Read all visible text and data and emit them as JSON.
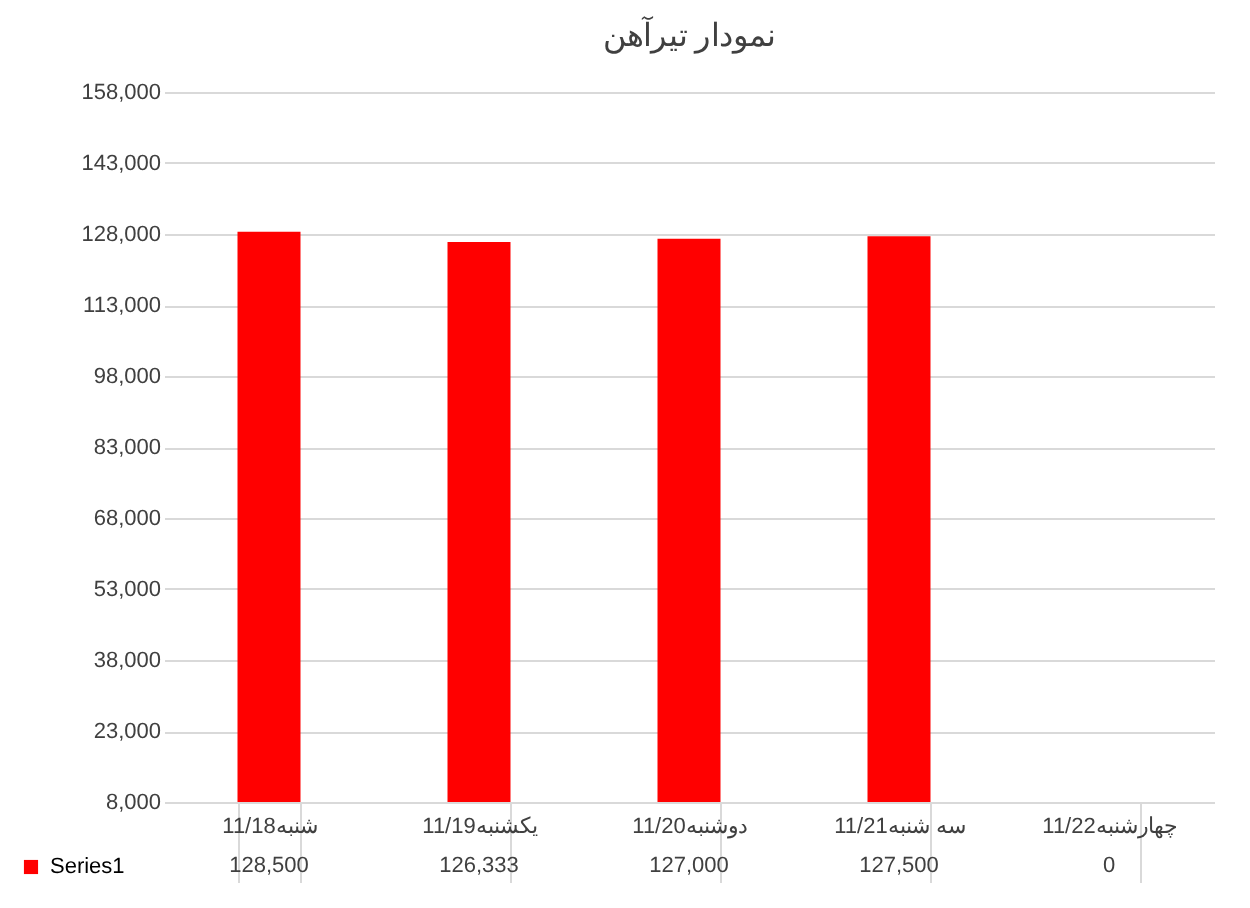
{
  "chart_data": {
    "type": "bar",
    "title": "نمودار تیرآهن",
    "categories": [
      "شنبه11/18",
      "یکشنبه11/19",
      "دوشنبه11/20",
      "سه شنبه11/21",
      "چهارشنبه11/22"
    ],
    "series": [
      {
        "name": "Series1",
        "color": "#ff0000",
        "values": [
          128500,
          126333,
          127000,
          127500,
          null
        ],
        "value_labels": [
          "128,500",
          "126,333",
          "127,000",
          "127,500",
          "0"
        ]
      }
    ],
    "ylim": [
      8000,
      158000
    ],
    "yticks": [
      {
        "value": 8000,
        "label": "8,000"
      },
      {
        "value": 23000,
        "label": "23,000"
      },
      {
        "value": 38000,
        "label": "38,000"
      },
      {
        "value": 53000,
        "label": "53,000"
      },
      {
        "value": 68000,
        "label": "68,000"
      },
      {
        "value": 83000,
        "label": "83,000"
      },
      {
        "value": 98000,
        "label": "98,000"
      },
      {
        "value": 113000,
        "label": "113,000"
      },
      {
        "value": 128000,
        "label": "128,000"
      },
      {
        "value": 143000,
        "label": "143,000"
      },
      {
        "value": 158000,
        "label": "158,000"
      }
    ],
    "grid": "y",
    "legend": "bottom left"
  }
}
